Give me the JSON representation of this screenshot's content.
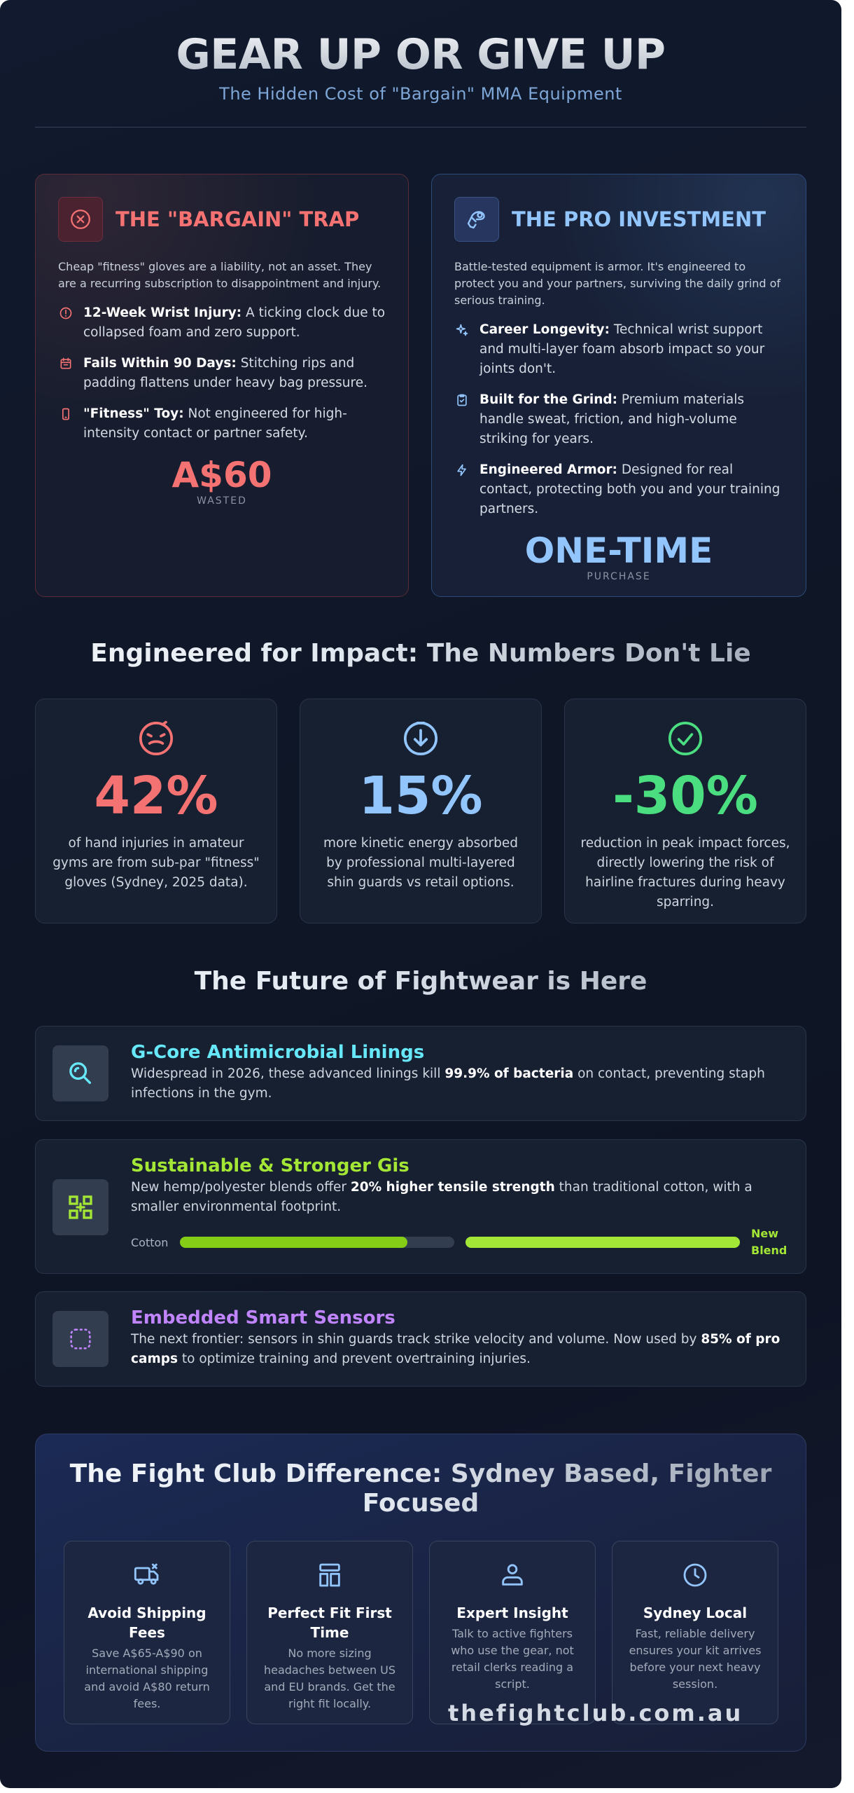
{
  "header": {
    "title": "GEAR UP OR GIVE UP",
    "subtitle": "The Hidden Cost of \"Bargain\" MMA Equipment"
  },
  "trap": {
    "icon": "x-circle-icon",
    "title": "THE \"BARGAIN\" TRAP",
    "intro": "Cheap \"fitness\" gloves are a liability, not an asset. They are a recurring subscription to disappointment and injury.",
    "bullets": [
      {
        "icon": "alert-circle-icon",
        "bold": "12-Week Wrist Injury:",
        "text": " A ticking clock due to collapsed foam and zero support."
      },
      {
        "icon": "calendar-icon",
        "bold": "Fails Within 90 Days:",
        "text": " Stitching rips and padding flattens under heavy bag pressure."
      },
      {
        "icon": "phone-icon",
        "bold": "\"Fitness\" Toy:",
        "text": " Not engineered for high-intensity contact or partner safety."
      }
    ],
    "price": "A$60",
    "price_caption": "WASTED",
    "accent": "#f47272"
  },
  "pro": {
    "icon": "boxing-glove-icon",
    "title": "THE PRO INVESTMENT",
    "intro": "Battle-tested equipment is armor. It's engineered to protect you and your partners, surviving the daily grind of serious training.",
    "bullets": [
      {
        "icon": "sparkle-icon",
        "bold": "Career Longevity:",
        "text": " Technical wrist support and multi-layer foam absorb impact so your joints don't."
      },
      {
        "icon": "clipboard-check-icon",
        "bold": "Built for the Grind:",
        "text": " Premium materials handle sweat, friction, and high-volume striking for years."
      },
      {
        "icon": "lightning-icon",
        "bold": "Engineered Armor:",
        "text": " Designed for real contact, protecting both you and your training partners."
      }
    ],
    "price": "ONE-TIME",
    "price_caption": "PURCHASE",
    "accent": "#93c5fd"
  },
  "stats": {
    "title": "Engineered for Impact: The Numbers Don't Lie",
    "items": [
      {
        "icon": "gauge-face-icon",
        "value": "42%",
        "text": "of hand injuries in amateur gyms are from sub-par \"fitness\" gloves (Sydney, 2025 data).",
        "color": "#f47272"
      },
      {
        "icon": "arrow-down-circle-icon",
        "value": "15%",
        "text": "more kinetic energy absorbed by professional multi-layered shin guards vs retail options.",
        "color": "#93c5fd"
      },
      {
        "icon": "check-circle-icon",
        "value": "-30%",
        "text": "reduction in peak impact forces, directly lowering the risk of hairline fractures during heavy sparring.",
        "color": "#4ade80"
      }
    ]
  },
  "future": {
    "title": "The Future of Fightwear is Here",
    "items": [
      {
        "icon": "magnifier-icon",
        "title": "G-Core Antimicrobial Linings",
        "color": "#67e8f9",
        "before": "Widespread in 2026, these advanced linings kill ",
        "bold": "99.9% of bacteria",
        "after": " on contact, preventing staph infections in the gym."
      },
      {
        "icon": "command-icon",
        "title": "Sustainable & Stronger Gis",
        "color": "#a3e635",
        "before": "New hemp/polyester blends offer ",
        "bold": "20% higher tensile strength",
        "after": " than traditional cotton, with a smaller environmental footprint.",
        "bar": {
          "cotton_label": "Cotton",
          "cotton_value": 0.83,
          "new_label": "New Blend",
          "new_value": 1.0
        }
      },
      {
        "icon": "sensor-dots-icon",
        "title": "Embedded Smart Sensors",
        "color": "#c084fc",
        "before": "The next frontier: sensors in shin guards track strike velocity and volume. Now used by ",
        "bold": "85% of pro camps",
        "after": " to optimize training and prevent overtraining injuries."
      }
    ]
  },
  "difference": {
    "title": "The Fight Club Difference: Sydney Based, Fighter Focused",
    "cards": [
      {
        "icon": "truck-icon",
        "title": "Avoid Shipping Fees",
        "text": "Save A$65-A$90 on international shipping and avoid A$80 return fees."
      },
      {
        "icon": "layout-icon",
        "title": "Perfect Fit First Time",
        "text": "No more sizing headaches between US and EU brands. Get the right fit locally."
      },
      {
        "icon": "users-icon",
        "title": "Expert Insight",
        "text": "Talk to active fighters who use the gear, not retail clerks reading a script."
      },
      {
        "icon": "clock-icon",
        "title": "Sydney Local",
        "text": "Fast, reliable delivery ensures your kit arrives before your next heavy session."
      }
    ]
  },
  "footer": {
    "url": "thefightclub.com.au"
  }
}
